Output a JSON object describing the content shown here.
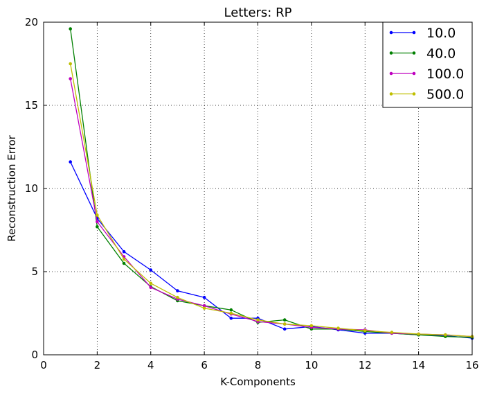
{
  "chart_data": {
    "type": "line",
    "title": "Letters: RP",
    "xlabel": "K-Components",
    "ylabel": "Reconstruction Error",
    "xlim": [
      0,
      16
    ],
    "ylim": [
      0,
      20
    ],
    "xticks": [
      "0",
      "2",
      "4",
      "6",
      "8",
      "10",
      "12",
      "14",
      "16"
    ],
    "yticks": [
      "0",
      "5",
      "10",
      "15",
      "20"
    ],
    "grid": true,
    "legend_position": "top-right",
    "x": [
      1,
      2,
      3,
      4,
      5,
      6,
      7,
      8,
      9,
      10,
      11,
      12,
      13,
      14,
      15,
      16
    ],
    "series": [
      {
        "name": "10.0",
        "color": "#0000ff",
        "values": [
          11.6,
          8.2,
          6.2,
          5.1,
          3.85,
          3.45,
          2.2,
          2.2,
          1.55,
          1.7,
          1.5,
          1.3,
          1.3,
          1.2,
          1.15,
          1.0
        ]
      },
      {
        "name": "40.0",
        "color": "#008000",
        "values": [
          19.6,
          7.7,
          5.5,
          4.1,
          3.25,
          2.95,
          2.7,
          1.95,
          2.1,
          1.55,
          1.55,
          1.4,
          1.3,
          1.2,
          1.1,
          1.05
        ]
      },
      {
        "name": "100.0",
        "color": "#bf00bf",
        "values": [
          16.6,
          8.0,
          5.9,
          4.05,
          3.35,
          2.95,
          2.45,
          2.0,
          1.85,
          1.65,
          1.55,
          1.5,
          1.3,
          1.25,
          1.2,
          1.1
        ]
      },
      {
        "name": "500.0",
        "color": "#bfbf00",
        "values": [
          17.5,
          8.4,
          5.75,
          4.3,
          3.45,
          2.8,
          2.5,
          2.1,
          1.85,
          1.75,
          1.6,
          1.45,
          1.35,
          1.25,
          1.2,
          1.1
        ]
      }
    ]
  }
}
